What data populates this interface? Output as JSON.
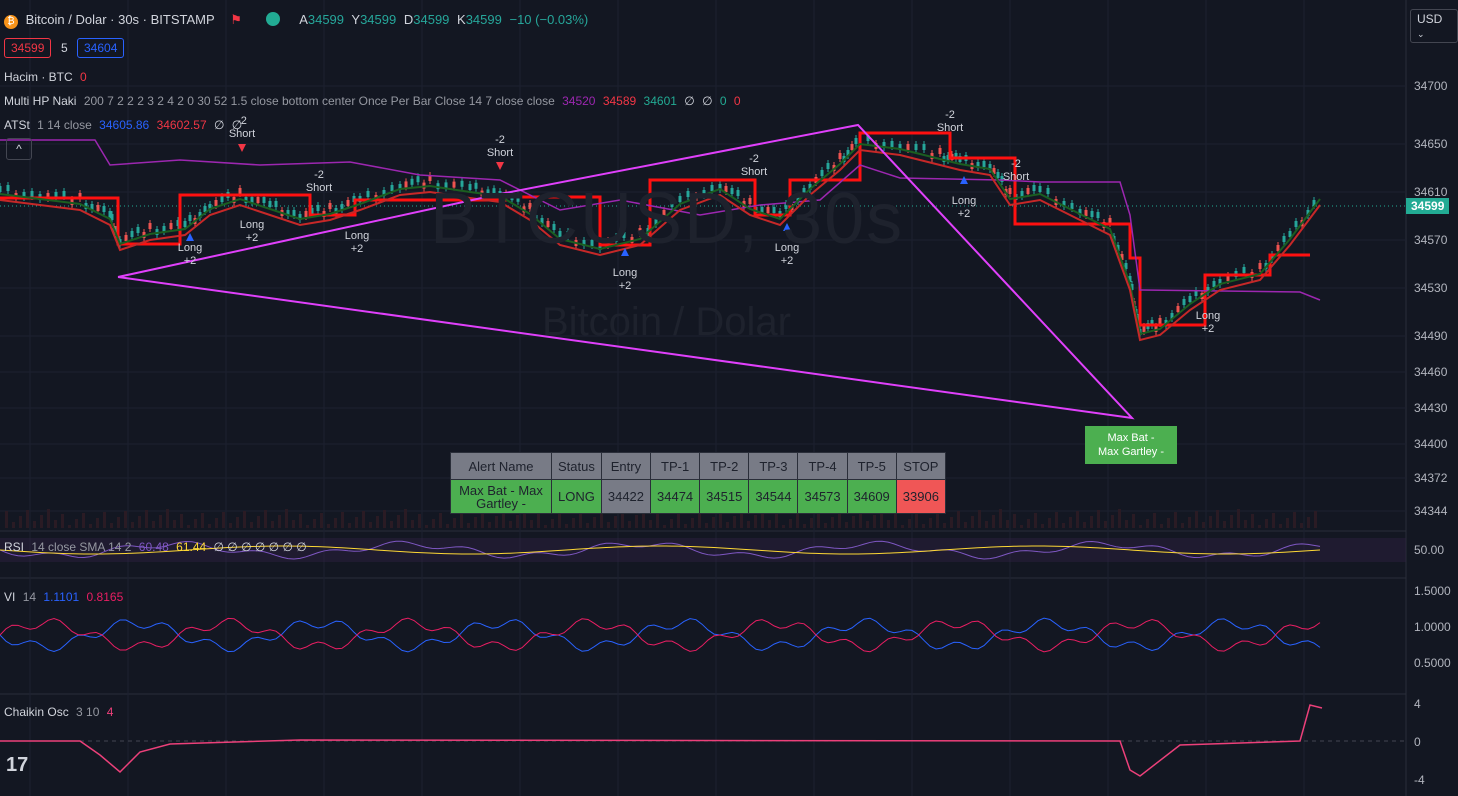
{
  "header": {
    "symbol": "Bitcoin / Dolar · 30s · BITSTAMP",
    "ohlc_label_a": "A",
    "ohlc_a": "34599",
    "ohlc_label_y": "Y",
    "ohlc_y": "34599",
    "ohlc_label_d": "D",
    "ohlc_d": "34599",
    "ohlc_label_k": "K",
    "ohlc_k": "34599",
    "change": "−10 (−0.03%)",
    "sell_price": "34599",
    "spread": "5",
    "buy_price": "34604",
    "currency": "USD"
  },
  "indicators": {
    "volume": {
      "name": "Hacim · BTC",
      "value": "0"
    },
    "multi_hp": {
      "name": "Multi HP Naki",
      "params": "200 7 2 2 2 3 2 4 2 0 30 52 1.5 close bottom center Once Per Bar Close 14 7 close close",
      "v1": "34520",
      "v2": "34589",
      "v3": "34601",
      "v4": "∅",
      "v5": "∅",
      "v6": "0",
      "v7": "0"
    },
    "atst": {
      "name": "ATSt",
      "params": "1 14 close",
      "v1": "34605.86",
      "v2": "34602.57",
      "v3": "∅",
      "v4": "∅"
    }
  },
  "watermark": {
    "ticker": "BTCUSD, 30s",
    "name": "Bitcoin / Dolar"
  },
  "price_axis": {
    "ticks": [
      "34700",
      "34650",
      "34610",
      "34570",
      "34530",
      "34490",
      "34460",
      "34430",
      "34400",
      "34372",
      "34344"
    ],
    "current": "34599"
  },
  "signals": [
    {
      "line1": "Long",
      "line2": "+2"
    },
    {
      "line1": "-2",
      "line2": "Short"
    },
    {
      "line1": "Long",
      "line2": "+2"
    },
    {
      "line1": "-2",
      "line2": "Short"
    },
    {
      "line1": "Long",
      "line2": "+2"
    },
    {
      "line1": "-2",
      "line2": "Short"
    },
    {
      "line1": "Long",
      "line2": "+2"
    },
    {
      "line1": "-2",
      "line2": "Short"
    },
    {
      "line1": "Long",
      "line2": "+2"
    },
    {
      "line1": "-2",
      "line2": "Short"
    },
    {
      "line1": "Long",
      "line2": "+2"
    },
    {
      "line1": "-2",
      "line2": "Short"
    },
    {
      "line1": "Long",
      "line2": "+2"
    },
    {
      "line1": "Long",
      "line2": "+2"
    }
  ],
  "pattern_label": {
    "line1": "Max Bat -",
    "line2": "Max Gartley -"
  },
  "alert_table": {
    "headers": [
      "Alert Name",
      "Status",
      "Entry",
      "TP-1",
      "TP-2",
      "TP-3",
      "TP-4",
      "TP-5",
      "STOP"
    ],
    "row": [
      "Max Bat - Max Gartley -",
      "LONG",
      "34422",
      "34474",
      "34515",
      "34544",
      "34573",
      "34609",
      "33906"
    ]
  },
  "rsi": {
    "name": "RSI",
    "params": "14 close SMA 14 2",
    "v1": "60.48",
    "v2": "61.44",
    "extra": "∅ ∅ ∅ ∅ ∅ ∅ ∅",
    "axis": "50.00"
  },
  "vi": {
    "name": "VI",
    "params": "14",
    "v1": "1.1101",
    "v2": "0.8165",
    "axis": [
      "1.5000",
      "1.0000",
      "0.5000"
    ]
  },
  "chaikin": {
    "name": "Chaikin Osc",
    "params": "3 10",
    "value": "4",
    "axis": [
      "4",
      "0",
      "-4"
    ]
  },
  "colors": {
    "up": "#26a69a",
    "down": "#ef5350",
    "pattern": "#e040fb",
    "atst": "#9c27b0"
  }
}
